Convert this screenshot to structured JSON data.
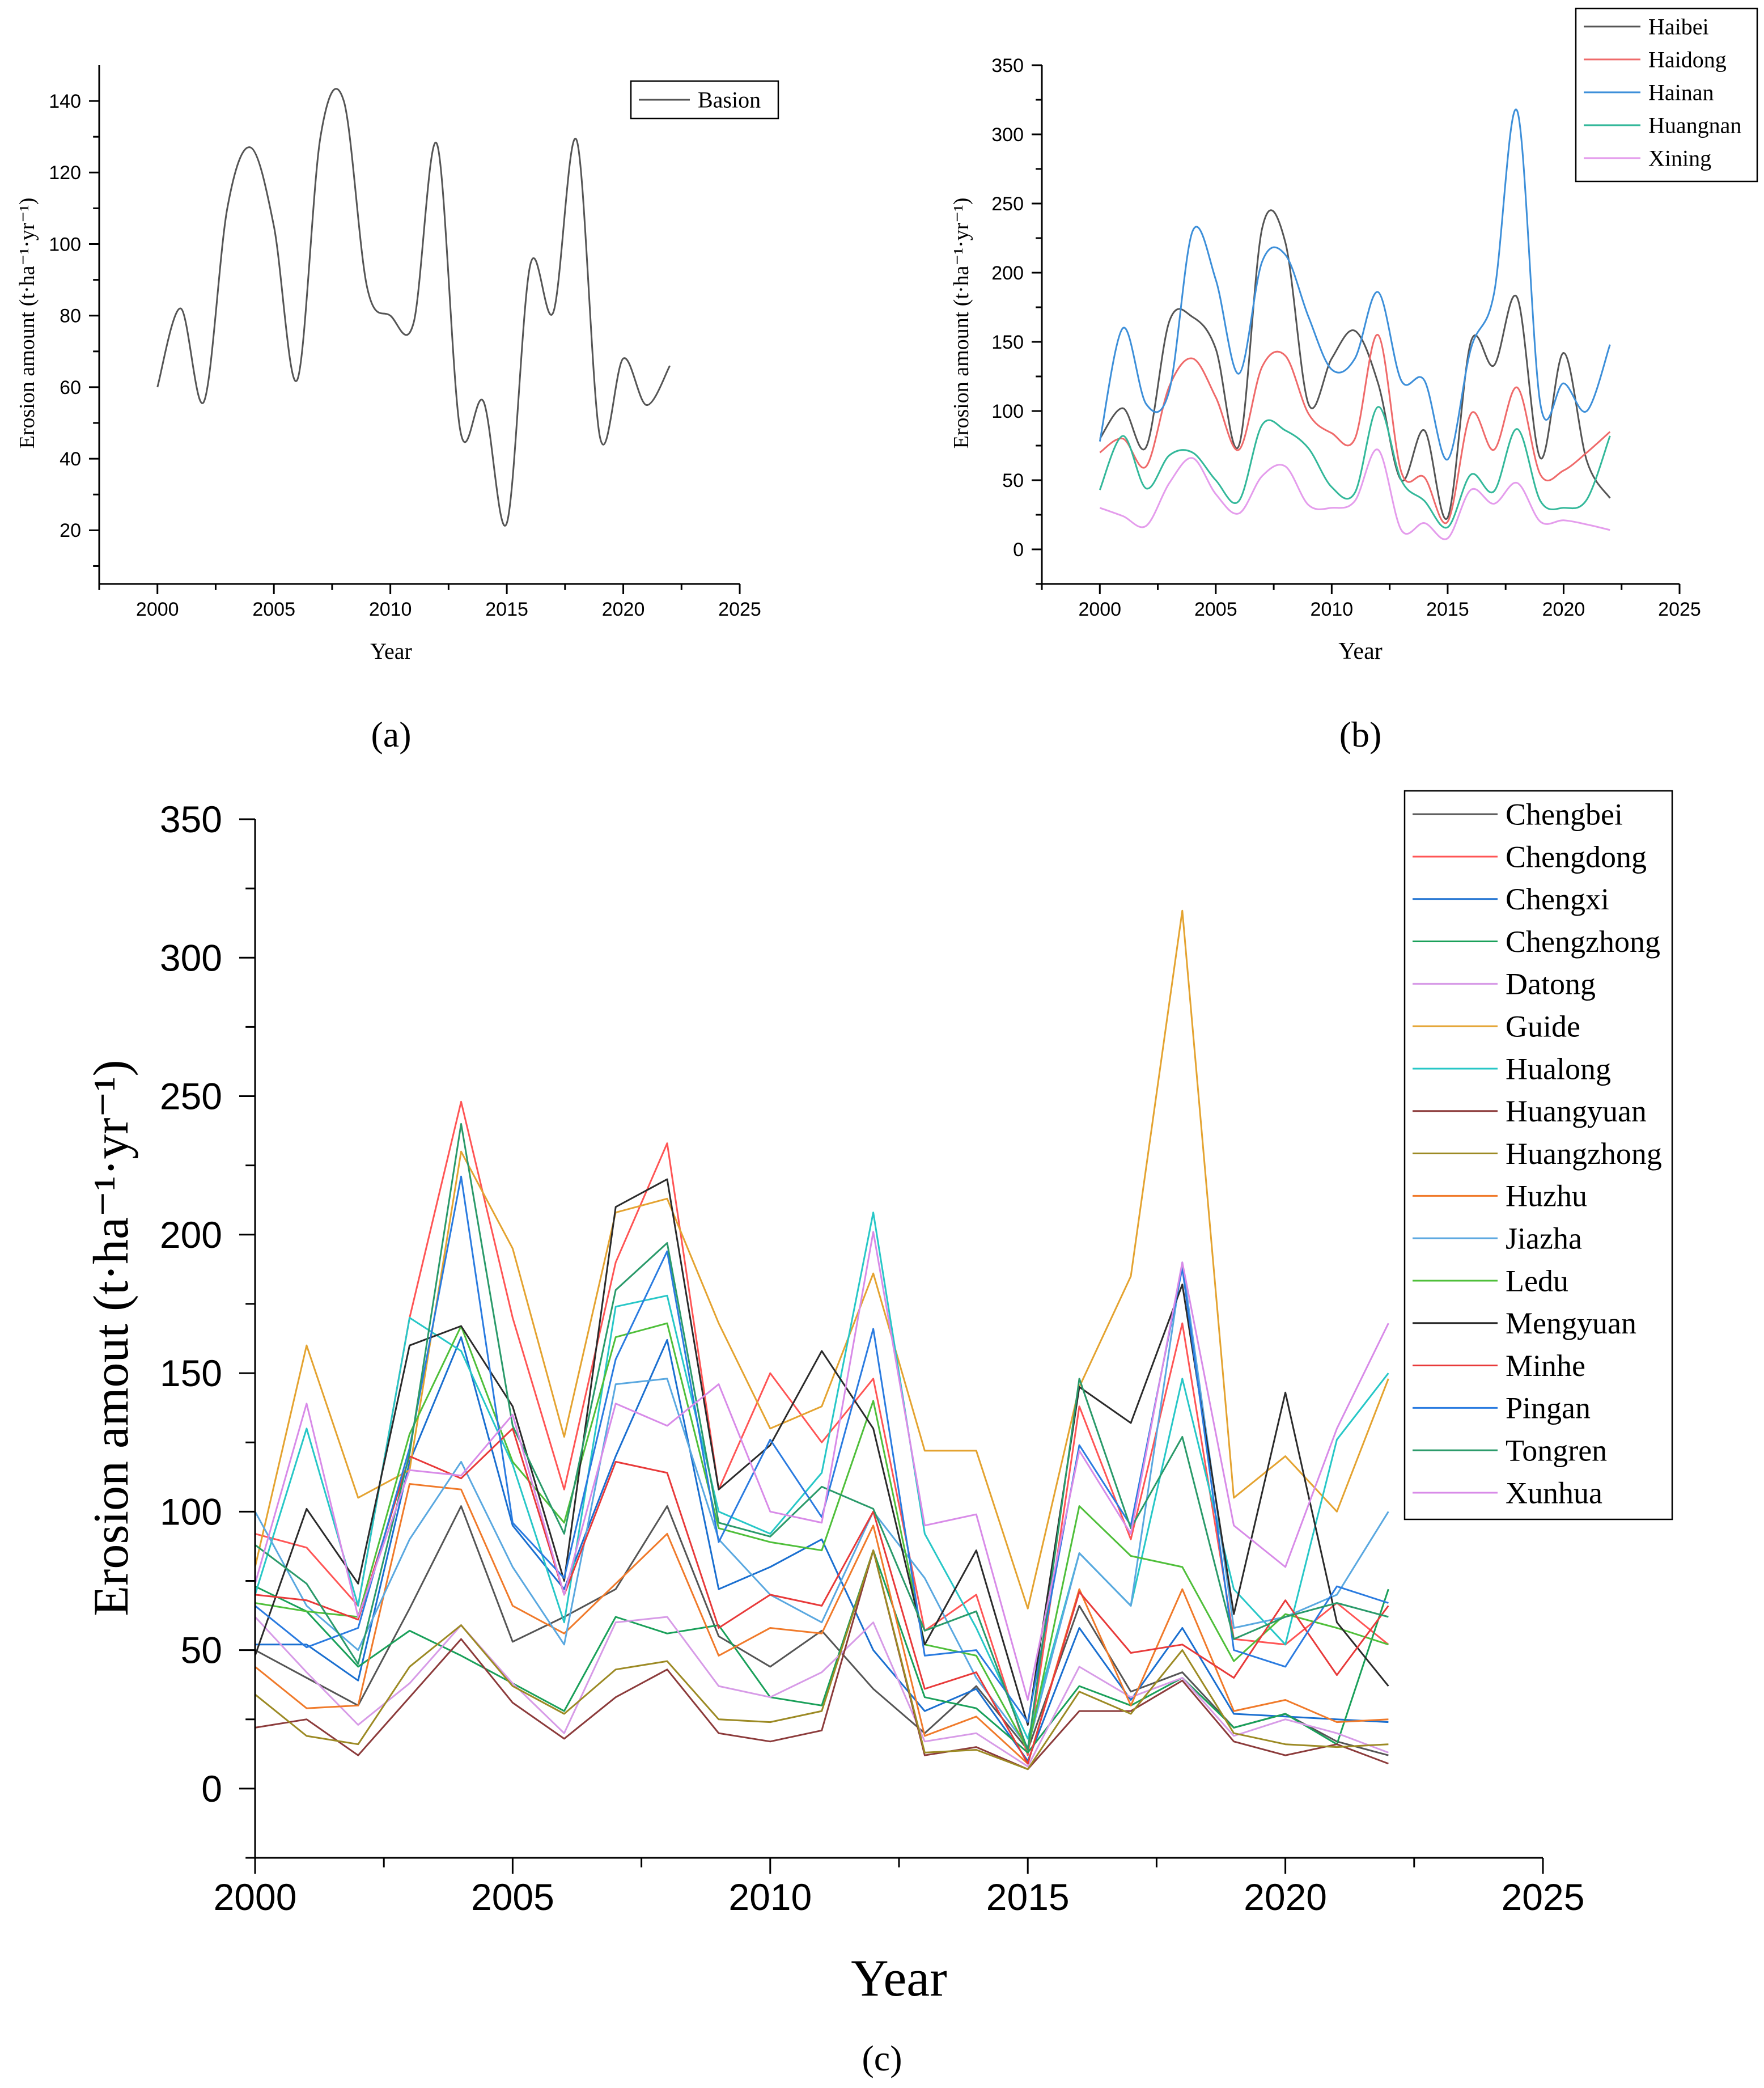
{
  "panels": [
    {
      "id": "a",
      "label": "(a)"
    },
    {
      "id": "b",
      "label": "(b)"
    },
    {
      "id": "c",
      "label": "(c)"
    }
  ],
  "chart_data": [
    {
      "id": "a",
      "type": "line",
      "smooth": true,
      "xlabel": "Year",
      "ylabel": "Erosion amount (t·ha⁻¹·yr⁻¹)",
      "xlim": [
        1997.5,
        2025
      ],
      "ylim": [
        5,
        150
      ],
      "xticks": [
        2000,
        2005,
        2010,
        2015,
        2020,
        2025
      ],
      "yticks": [
        20,
        40,
        60,
        80,
        100,
        120,
        140
      ],
      "legend_position": "top-right",
      "x": [
        2000,
        2001,
        2002,
        2003,
        2004,
        2005,
        2006,
        2007,
        2008,
        2009,
        2010,
        2011,
        2012,
        2013,
        2014,
        2015,
        2016,
        2017,
        2018,
        2019,
        2020,
        2021,
        2022
      ],
      "series": [
        {
          "name": "Basion",
          "color": "#555555",
          "values": [
            60,
            82,
            56,
            110,
            127,
            105,
            62,
            130,
            140,
            88,
            80,
            78,
            128,
            48,
            56,
            22,
            94,
            81,
            129,
            46,
            68,
            55,
            66
          ]
        }
      ]
    },
    {
      "id": "b",
      "type": "line",
      "smooth": true,
      "xlabel": "Year",
      "ylabel": "Erosion amount (t·ha⁻¹·yr⁻¹)",
      "xlim": [
        1997.5,
        2025
      ],
      "ylim": [
        -25,
        350
      ],
      "xticks": [
        2000,
        2005,
        2010,
        2015,
        2020,
        2025
      ],
      "yticks": [
        0,
        50,
        100,
        150,
        200,
        250,
        300,
        350
      ],
      "legend_position": "top-right",
      "x": [
        2000,
        2001,
        2002,
        2003,
        2004,
        2005,
        2006,
        2007,
        2008,
        2009,
        2010,
        2011,
        2012,
        2013,
        2014,
        2015,
        2016,
        2017,
        2018,
        2019,
        2020,
        2021,
        2022
      ],
      "series": [
        {
          "name": "Haibei",
          "color": "#555555",
          "values": [
            80,
            102,
            74,
            165,
            168,
            145,
            75,
            232,
            222,
            105,
            138,
            158,
            120,
            50,
            86,
            23,
            150,
            133,
            182,
            66,
            142,
            64,
            37
          ]
        },
        {
          "name": "Haidong",
          "color": "#ef6a6a",
          "values": [
            70,
            80,
            60,
            118,
            138,
            110,
            72,
            132,
            140,
            98,
            84,
            80,
            155,
            56,
            52,
            20,
            98,
            72,
            117,
            54,
            57,
            70,
            85
          ]
        },
        {
          "name": "Hainan",
          "color": "#3d8fd9",
          "values": [
            78,
            160,
            105,
            115,
            230,
            195,
            127,
            208,
            213,
            168,
            130,
            138,
            186,
            122,
            122,
            65,
            145,
            185,
            317,
            105,
            120,
            100,
            148
          ]
        },
        {
          "name": "Huangnan",
          "color": "#33b89a",
          "values": [
            43,
            82,
            44,
            68,
            70,
            50,
            35,
            90,
            86,
            73,
            45,
            41,
            103,
            50,
            35,
            16,
            54,
            42,
            87,
            35,
            30,
            36,
            82
          ]
        },
        {
          "name": "Xining",
          "color": "#e49cec",
          "values": [
            30,
            24,
            17,
            48,
            66,
            40,
            26,
            53,
            60,
            32,
            30,
            35,
            72,
            14,
            19,
            8,
            43,
            33,
            48,
            20,
            21,
            18,
            14
          ]
        }
      ]
    },
    {
      "id": "c",
      "type": "line",
      "smooth": false,
      "xlabel": "Year",
      "ylabel": "Erosion amout (t·ha⁻¹·yr⁻¹)",
      "xlim": [
        2000,
        2025
      ],
      "ylim": [
        -25,
        350
      ],
      "xticks": [
        2000,
        2005,
        2010,
        2015,
        2020,
        2025
      ],
      "yticks": [
        0,
        50,
        100,
        150,
        200,
        250,
        300,
        350
      ],
      "legend_position": "top-right",
      "x": [
        2000,
        2001,
        2002,
        2003,
        2004,
        2005,
        2006,
        2007,
        2008,
        2009,
        2010,
        2011,
        2012,
        2013,
        2014,
        2015,
        2016,
        2017,
        2018,
        2019,
        2020,
        2021,
        2022
      ],
      "series": [
        {
          "name": "Chengbei",
          "color": "#555555",
          "values": [
            50,
            40,
            30,
            65,
            102,
            53,
            62,
            72,
            102,
            55,
            44,
            57,
            36,
            20,
            37,
            14,
            66,
            35,
            42,
            22,
            27,
            17,
            12
          ]
        },
        {
          "name": "Chengdong",
          "color": "#ff5555",
          "values": [
            92,
            87,
            66,
            170,
            248,
            170,
            108,
            190,
            233,
            108,
            150,
            125,
            148,
            57,
            70,
            12,
            138,
            90,
            168,
            54,
            52,
            67,
            52
          ]
        },
        {
          "name": "Chengxi",
          "color": "#1a6fd0",
          "values": [
            52,
            52,
            39,
            118,
            163,
            95,
            72,
            120,
            162,
            72,
            80,
            90,
            50,
            28,
            36,
            10,
            58,
            32,
            58,
            27,
            26,
            25,
            24
          ]
        },
        {
          "name": "Chengzhong",
          "color": "#1aa05a",
          "values": [
            73,
            64,
            44,
            57,
            48,
            38,
            28,
            62,
            56,
            59,
            33,
            30,
            86,
            33,
            29,
            13,
            37,
            30,
            40,
            22,
            27,
            16,
            72
          ]
        },
        {
          "name": "Datong",
          "color": "#d79be7",
          "values": [
            62,
            42,
            23,
            38,
            59,
            38,
            20,
            60,
            62,
            37,
            33,
            42,
            60,
            17,
            20,
            8,
            44,
            33,
            40,
            19,
            25,
            20,
            13
          ]
        },
        {
          "name": "Guide",
          "color": "#e4a330",
          "values": [
            80,
            160,
            105,
            115,
            230,
            195,
            127,
            208,
            213,
            168,
            130,
            138,
            186,
            122,
            122,
            65,
            145,
            185,
            317,
            105,
            120,
            100,
            148
          ]
        },
        {
          "name": "Hualong",
          "color": "#27c7c7",
          "values": [
            70,
            130,
            66,
            170,
            158,
            117,
            60,
            174,
            178,
            100,
            92,
            114,
            208,
            92,
            58,
            18,
            85,
            66,
            148,
            72,
            52,
            126,
            150
          ]
        },
        {
          "name": "Huangyuan",
          "color": "#8c3b3b",
          "values": [
            22,
            25,
            12,
            33,
            54,
            31,
            18,
            33,
            43,
            20,
            17,
            21,
            86,
            12,
            15,
            7,
            28,
            28,
            39,
            17,
            12,
            16,
            9
          ]
        },
        {
          "name": "Huangzhong",
          "color": "#9c8a24",
          "values": [
            34,
            19,
            16,
            44,
            59,
            37,
            27,
            43,
            46,
            25,
            24,
            28,
            86,
            13,
            14,
            7,
            35,
            27,
            50,
            20,
            16,
            15,
            16
          ]
        },
        {
          "name": "Huzhu",
          "color": "#f07a2a",
          "values": [
            44,
            29,
            30,
            110,
            108,
            66,
            56,
            74,
            92,
            48,
            58,
            56,
            95,
            19,
            26,
            9,
            72,
            30,
            72,
            28,
            32,
            24,
            25
          ]
        },
        {
          "name": "Jiazha",
          "color": "#5aa8e0",
          "values": [
            100,
            66,
            50,
            90,
            118,
            80,
            52,
            146,
            148,
            90,
            70,
            60,
            100,
            76,
            40,
            15,
            85,
            66,
            190,
            58,
            62,
            70,
            100
          ]
        },
        {
          "name": "Ledu",
          "color": "#4fbf3a",
          "values": [
            67,
            64,
            62,
            128,
            167,
            118,
            96,
            163,
            168,
            94,
            89,
            86,
            140,
            52,
            48,
            14,
            102,
            84,
            80,
            46,
            63,
            58,
            52
          ]
        },
        {
          "name": "Mengyuan",
          "color": "#2b2b2b",
          "values": [
            48,
            101,
            74,
            160,
            167,
            138,
            75,
            210,
            220,
            108,
            124,
            158,
            130,
            52,
            86,
            23,
            145,
            132,
            182,
            63,
            143,
            60,
            37
          ]
        },
        {
          "name": "Minhe",
          "color": "#e83a3a",
          "values": [
            70,
            68,
            61,
            120,
            112,
            130,
            70,
            118,
            114,
            58,
            70,
            66,
            100,
            36,
            42,
            9,
            71,
            49,
            52,
            40,
            68,
            41,
            66
          ]
        },
        {
          "name": "Pingan",
          "color": "#2a7be0",
          "values": [
            66,
            51,
            58,
            123,
            221,
            96,
            76,
            155,
            194,
            89,
            126,
            98,
            166,
            48,
            50,
            24,
            124,
            95,
            188,
            50,
            44,
            73,
            67
          ]
        },
        {
          "name": "Tongren",
          "color": "#2a9a6a",
          "values": [
            88,
            74,
            45,
            121,
            240,
            131,
            92,
            180,
            197,
            96,
            91,
            109,
            101,
            57,
            64,
            14,
            148,
            94,
            127,
            54,
            62,
            67,
            62
          ]
        },
        {
          "name": "Xunhua",
          "color": "#d88be8",
          "values": [
            74,
            139,
            62,
            115,
            113,
            135,
            70,
            139,
            131,
            146,
            100,
            96,
            201,
            95,
            99,
            32,
            122,
            92,
            190,
            95,
            80,
            130,
            168
          ]
        }
      ]
    }
  ]
}
